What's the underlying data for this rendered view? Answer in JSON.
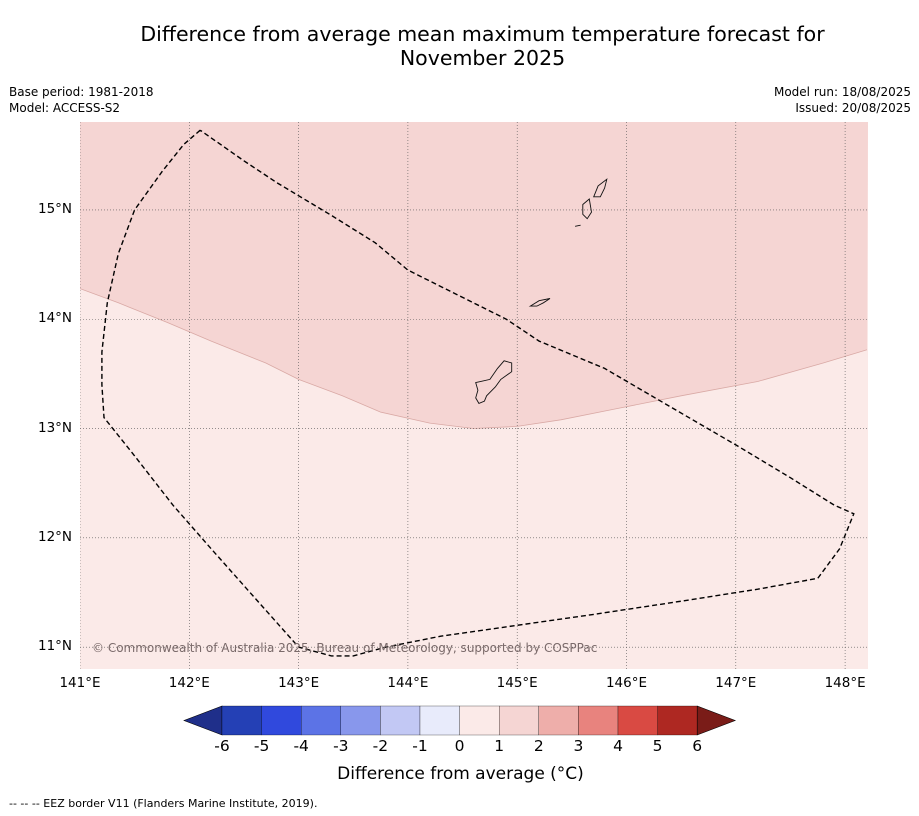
{
  "title_line1": "Difference from average mean maximum temperature forecast for",
  "title_line2": "November 2025",
  "base_period": "Base period: 1981-2018",
  "model": "Model: ACCESS-S2",
  "model_run": "Model run: 18/08/2025",
  "issued": "Issued: 20/08/2025",
  "copyright": "© Commonwealth of Australia 2025, Bureau of Meteorology, supported by COSPPac",
  "lat_labels": [
    "15°N",
    "14°N",
    "13°N",
    "12°N",
    "11°N"
  ],
  "lon_labels": [
    "141°E",
    "142°E",
    "143°E",
    "144°E",
    "145°E",
    "146°E",
    "147°E",
    "148°E"
  ],
  "colorbar": {
    "title": "Difference from average (°C)",
    "ticks": [
      "-6",
      "-5",
      "-4",
      "-3",
      "-2",
      "-1",
      "0",
      "1",
      "2",
      "3",
      "4",
      "5",
      "6"
    ],
    "colors": [
      "#1f2f8a",
      "#2440b5",
      "#3049dd",
      "#5c73e6",
      "#8897ec",
      "#c2c8f4",
      "#e8ebfb",
      "#fbeae8",
      "#f5d5d3",
      "#eeaeaa",
      "#e8837e",
      "#d94a43",
      "#ae2822",
      "#7a1c18"
    ]
  },
  "map": {
    "extent": {
      "lon_min": 141.0,
      "lon_max": 148.2,
      "lat_min": 10.8,
      "lat_max": 15.8
    },
    "anomaly_fill_0_1": "#fbeae8",
    "anomaly_fill_1_2": "#f5d5d3",
    "boundary_1C": [
      [
        141.0,
        14.28
      ],
      [
        141.35,
        14.15
      ],
      [
        141.8,
        13.97
      ],
      [
        142.2,
        13.8
      ],
      [
        142.7,
        13.6
      ],
      [
        143.0,
        13.45
      ],
      [
        143.4,
        13.3
      ],
      [
        143.75,
        13.15
      ],
      [
        144.2,
        13.05
      ],
      [
        144.6,
        13.0
      ],
      [
        145.0,
        13.02
      ],
      [
        145.4,
        13.08
      ],
      [
        145.9,
        13.18
      ],
      [
        146.5,
        13.3
      ],
      [
        147.2,
        13.43
      ],
      [
        147.8,
        13.6
      ],
      [
        148.2,
        13.72
      ]
    ],
    "eez_border": [
      [
        142.1,
        15.73
      ],
      [
        141.95,
        15.6
      ],
      [
        141.75,
        15.35
      ],
      [
        141.5,
        15.0
      ],
      [
        141.35,
        14.6
      ],
      [
        141.25,
        14.15
      ],
      [
        141.2,
        13.7
      ],
      [
        141.2,
        13.4
      ],
      [
        141.22,
        13.1
      ],
      [
        141.5,
        12.75
      ],
      [
        141.85,
        12.3
      ],
      [
        142.2,
        11.9
      ],
      [
        142.6,
        11.45
      ],
      [
        143.0,
        11.0
      ],
      [
        143.3,
        10.92
      ],
      [
        143.5,
        10.92
      ],
      [
        143.8,
        11.0
      ],
      [
        144.3,
        11.1
      ],
      [
        145.0,
        11.2
      ],
      [
        145.7,
        11.3
      ],
      [
        146.5,
        11.42
      ],
      [
        147.2,
        11.53
      ],
      [
        147.75,
        11.63
      ],
      [
        147.95,
        11.9
      ],
      [
        148.08,
        12.22
      ],
      [
        147.9,
        12.3
      ],
      [
        147.5,
        12.55
      ],
      [
        147.0,
        12.85
      ],
      [
        146.4,
        13.2
      ],
      [
        145.8,
        13.55
      ],
      [
        145.2,
        13.8
      ],
      [
        144.9,
        14.0
      ],
      [
        144.5,
        14.2
      ],
      [
        144.0,
        14.45
      ],
      [
        143.7,
        14.7
      ],
      [
        143.3,
        14.95
      ],
      [
        142.8,
        15.25
      ],
      [
        142.5,
        15.45
      ],
      [
        142.1,
        15.73
      ]
    ],
    "islands": [
      {
        "name": "Guam",
        "coords": [
          [
            144.62,
            13.42
          ],
          [
            144.75,
            13.45
          ],
          [
            144.82,
            13.55
          ],
          [
            144.88,
            13.62
          ],
          [
            144.95,
            13.6
          ],
          [
            144.95,
            13.52
          ],
          [
            144.85,
            13.45
          ],
          [
            144.8,
            13.38
          ],
          [
            144.72,
            13.3
          ],
          [
            144.7,
            13.25
          ],
          [
            144.65,
            13.23
          ],
          [
            144.62,
            13.28
          ],
          [
            144.64,
            13.35
          ],
          [
            144.62,
            13.42
          ]
        ]
      },
      {
        "name": "Rota",
        "coords": [
          [
            145.12,
            14.12
          ],
          [
            145.2,
            14.17
          ],
          [
            145.3,
            14.19
          ],
          [
            145.24,
            14.15
          ],
          [
            145.18,
            14.12
          ],
          [
            145.12,
            14.12
          ]
        ]
      },
      {
        "name": "Tinian",
        "coords": [
          [
            145.6,
            15.05
          ],
          [
            145.66,
            15.1
          ],
          [
            145.68,
            14.98
          ],
          [
            145.64,
            14.92
          ],
          [
            145.6,
            14.96
          ],
          [
            145.6,
            15.05
          ]
        ]
      },
      {
        "name": "Saipan",
        "coords": [
          [
            145.7,
            15.12
          ],
          [
            145.74,
            15.22
          ],
          [
            145.82,
            15.28
          ],
          [
            145.8,
            15.2
          ],
          [
            145.76,
            15.12
          ],
          [
            145.7,
            15.12
          ]
        ]
      },
      {
        "name": "Aguijan",
        "coords": [
          [
            145.53,
            14.85
          ],
          [
            145.58,
            14.86
          ]
        ]
      }
    ]
  },
  "footnote": "--  --  -- EEZ border V11 (Flanders Marine Institute, 2019)."
}
